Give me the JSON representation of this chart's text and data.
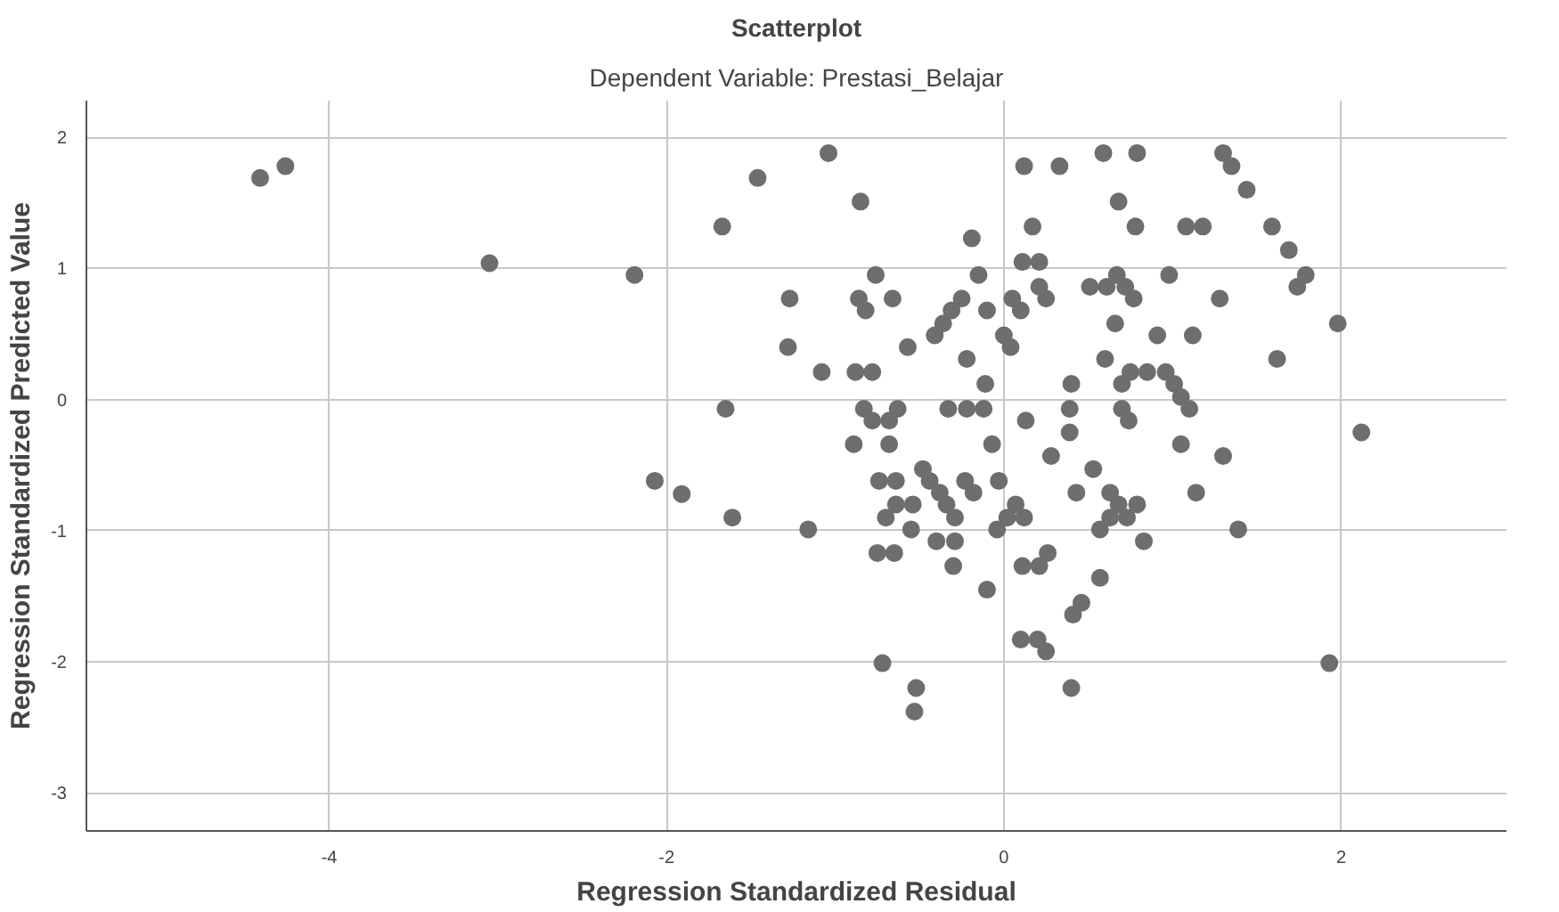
{
  "chart_data": {
    "type": "scatter",
    "title": "Scatterplot",
    "subtitle": "Dependent Variable: Prestasi_Belajar",
    "xlabel": "Regression Standardized Residual",
    "ylabel": "Regression Standardized Predicted Value",
    "xlim": [
      -5.44,
      2.98
    ],
    "ylim": [
      -3.29,
      2.28
    ],
    "xticks": [
      -4,
      -2,
      0,
      2
    ],
    "yticks": [
      -3,
      -2,
      -1,
      0,
      1,
      2
    ],
    "grid": true,
    "marker": "circle",
    "series": [
      {
        "color": "#6e6e6e",
        "x": [
          -4.41,
          -4.26,
          -3.05,
          -2.19,
          -1.67,
          -1.65,
          -2.07,
          -1.91,
          -1.61,
          -1.46,
          -1.04,
          -0.85,
          -0.19,
          -0.76,
          -0.15,
          -1.27,
          -0.86,
          -0.82,
          -0.66,
          -0.25,
          -0.31,
          -0.1,
          -0.36,
          -0.41,
          -1.28,
          -0.57,
          -0.22,
          -0.11,
          -1.08,
          -0.88,
          -0.78,
          -0.83,
          -0.63,
          -0.33,
          -0.22,
          -0.12,
          -0.78,
          -0.68,
          -0.89,
          -0.68,
          -0.07,
          -0.48,
          -0.44,
          -0.74,
          -0.64,
          -0.38,
          -0.23,
          -0.18,
          -0.03,
          -0.64,
          -0.54,
          -0.34,
          -0.7,
          -0.29,
          0.02,
          -1.16,
          -0.55,
          -0.04,
          -0.4,
          -0.29,
          -0.75,
          -0.65,
          -0.3,
          -0.1,
          -0.72,
          -0.52,
          -0.53,
          0.12,
          0.33,
          0.59,
          0.79,
          1.3,
          1.35,
          1.44,
          0.68,
          0.17,
          0.78,
          1.08,
          1.18,
          1.59,
          0.11,
          0.21,
          0.67,
          0.98,
          0.05,
          0.21,
          0.25,
          0.1,
          0.51,
          0.61,
          0.72,
          0.77,
          1.28,
          0.66,
          0.0,
          0.04,
          0.91,
          1.12,
          0.6,
          0.75,
          0.85,
          0.96,
          1.01,
          0.4,
          0.7,
          1.05,
          1.1,
          0.39,
          0.7,
          0.13,
          0.39,
          0.74,
          1.62,
          0.28,
          1.05,
          1.3,
          0.53,
          0.43,
          0.63,
          1.14,
          0.07,
          0.68,
          0.79,
          0.12,
          0.63,
          0.73,
          0.57,
          1.39,
          0.83,
          0.11,
          0.21,
          0.26,
          0.57,
          0.46,
          0.41,
          0.1,
          0.2,
          0.25,
          0.4,
          1.69,
          1.79,
          1.74,
          1.98,
          2.12,
          1.93
        ],
        "values": [
          1.69,
          1.78,
          1.04,
          0.95,
          1.32,
          -0.07,
          -0.62,
          -0.72,
          -0.9,
          1.69,
          1.88,
          1.51,
          1.23,
          0.95,
          0.95,
          0.77,
          0.77,
          0.68,
          0.77,
          0.77,
          0.68,
          0.68,
          0.58,
          0.49,
          0.4,
          0.4,
          0.31,
          0.12,
          0.21,
          0.21,
          0.21,
          -0.07,
          -0.07,
          -0.07,
          -0.07,
          -0.07,
          -0.16,
          -0.16,
          -0.34,
          -0.34,
          -0.34,
          -0.53,
          -0.62,
          -0.62,
          -0.62,
          -0.71,
          -0.62,
          -0.71,
          -0.62,
          -0.8,
          -0.8,
          -0.8,
          -0.9,
          -0.9,
          -0.9,
          -0.99,
          -0.99,
          -0.99,
          -1.08,
          -1.08,
          -1.17,
          -1.17,
          -1.27,
          -1.45,
          -2.01,
          -2.2,
          -2.38,
          1.78,
          1.78,
          1.88,
          1.88,
          1.88,
          1.78,
          1.6,
          1.51,
          1.32,
          1.32,
          1.32,
          1.32,
          1.32,
          1.05,
          1.05,
          0.95,
          0.95,
          0.77,
          0.86,
          0.77,
          0.68,
          0.86,
          0.86,
          0.86,
          0.77,
          0.77,
          0.58,
          0.49,
          0.4,
          0.49,
          0.49,
          0.31,
          0.21,
          0.21,
          0.21,
          0.12,
          0.12,
          0.12,
          0.02,
          -0.07,
          -0.07,
          -0.07,
          -0.16,
          -0.25,
          -0.16,
          0.31,
          -0.43,
          -0.34,
          -0.43,
          -0.53,
          -0.71,
          -0.71,
          -0.71,
          -0.8,
          -0.8,
          -0.8,
          -0.9,
          -0.9,
          -0.9,
          -0.99,
          -0.99,
          -1.08,
          -1.27,
          -1.27,
          -1.17,
          -1.36,
          -1.55,
          -1.64,
          -1.83,
          -1.83,
          -1.92,
          -2.2,
          1.14,
          0.95,
          0.86,
          0.58,
          -0.25,
          -2.01
        ]
      }
    ]
  }
}
